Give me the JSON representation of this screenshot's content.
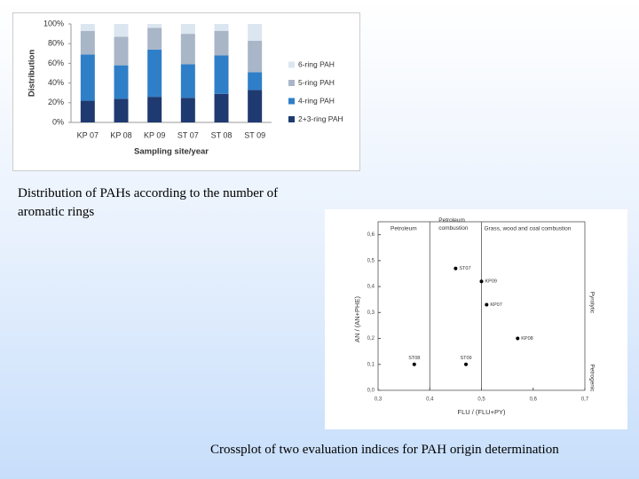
{
  "chart_data": [
    {
      "type": "stacked_bar",
      "x_label": "Sampling site/year",
      "y_label": "Distribution",
      "categories": [
        "KP 07",
        "KP 08",
        "KP 09",
        "ST 07",
        "ST 08",
        "ST 09"
      ],
      "series": [
        {
          "name": "2+3-ring PAH",
          "color": "#1f3a70",
          "values": [
            22,
            24,
            26,
            25,
            29,
            33
          ]
        },
        {
          "name": "4-ring PAH",
          "color": "#2f7fc8",
          "values": [
            47,
            34,
            48,
            34,
            39,
            18
          ]
        },
        {
          "name": "5-ring PAH",
          "color": "#a9b6c8",
          "values": [
            24,
            29,
            22,
            31,
            25,
            32
          ]
        },
        {
          "name": "6-ring PAH",
          "color": "#dce6f0",
          "values": [
            7,
            13,
            4,
            10,
            7,
            17
          ]
        }
      ],
      "ylim": [
        0,
        100
      ],
      "yticks": [
        {
          "value": 0,
          "label": "0%"
        },
        {
          "value": 20,
          "label": "20%"
        },
        {
          "value": 40,
          "label": "40%"
        },
        {
          "value": 60,
          "label": "60%"
        },
        {
          "value": 80,
          "label": "80%"
        },
        {
          "value": 100,
          "label": "100%"
        }
      ],
      "legend": "right"
    },
    {
      "type": "scatter",
      "x_label": "FLU / (FLU+PY)",
      "y_label": "AN / (AN+PHE)",
      "x": [
        0.45,
        0.5,
        0.51,
        0.57,
        0.37,
        0.47
      ],
      "y": [
        0.47,
        0.42,
        0.33,
        0.2,
        0.1,
        0.1
      ],
      "labels": [
        "ST07",
        "KP09",
        "KP07",
        "KP08",
        "ST08",
        "ST09"
      ],
      "color": "#000000",
      "xlim": [
        0.3,
        0.7
      ],
      "ylim": [
        0,
        0.65
      ],
      "xticks": [
        {
          "value": 0.3,
          "label": "0,3"
        },
        {
          "value": 0.4,
          "label": "0,4"
        },
        {
          "value": 0.5,
          "label": "0,5"
        },
        {
          "value": 0.6,
          "label": "0,6"
        },
        {
          "value": 0.7,
          "label": "0,7"
        }
      ],
      "yticks": [
        {
          "value": 0,
          "label": "0,0"
        },
        {
          "value": 0.1,
          "label": "0,1"
        },
        {
          "value": 0.2,
          "label": "0,2"
        },
        {
          "value": 0.3,
          "label": "0,3"
        },
        {
          "value": 0.4,
          "label": "0,4"
        },
        {
          "value": 0.5,
          "label": "0,5"
        },
        {
          "value": 0.6,
          "label": "0,6"
        }
      ],
      "vlines": [
        0.4,
        0.5
      ],
      "regions": [
        "Petroleum",
        "Petroleum combustion",
        "Grass, wood and coal combustion"
      ],
      "side_labels": [
        "Pyrolytic",
        "Petrogenic"
      ]
    }
  ],
  "captions": [
    "Distribution of PAHs according to the number of aromatic rings",
    "Crossplot of two evaluation indices for PAH origin determination"
  ]
}
